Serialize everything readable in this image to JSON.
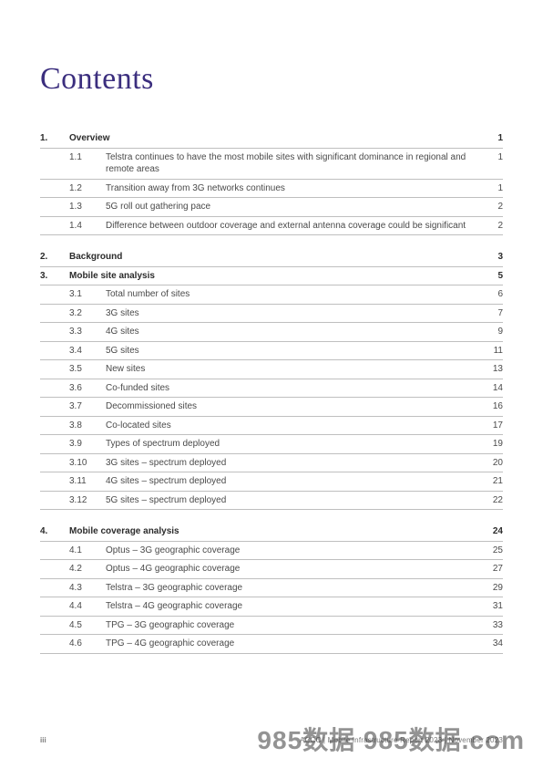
{
  "colors": {
    "title": "#3b2e7e",
    "text": "#4a4a4a",
    "section_text": "#2b2b2b",
    "rule": "#bfbfbf",
    "footer": "#7a7a7a",
    "watermark": "#3b3b3b"
  },
  "title": "Contents",
  "sections": [
    {
      "num": "1.",
      "label": "Overview",
      "page": "1",
      "gap_before": false,
      "items": [
        {
          "num": "1.1",
          "label": "Telstra continues to have the most mobile sites with significant dominance in regional and remote areas",
          "page": "1"
        },
        {
          "num": "1.2",
          "label": "Transition away from 3G networks continues",
          "page": "1"
        },
        {
          "num": "1.3",
          "label": "5G roll out gathering pace",
          "page": "2"
        },
        {
          "num": "1.4",
          "label": "Difference between outdoor coverage and external antenna coverage could be significant",
          "page": "2"
        }
      ]
    },
    {
      "num": "2.",
      "label": "Background",
      "page": "3",
      "gap_before": true,
      "items": []
    },
    {
      "num": "3.",
      "label": "Mobile site analysis",
      "page": "5",
      "gap_before": false,
      "items": [
        {
          "num": "3.1",
          "label": "Total number of sites",
          "page": "6"
        },
        {
          "num": "3.2",
          "label": "3G sites",
          "page": "7"
        },
        {
          "num": "3.3",
          "label": "4G sites",
          "page": "9"
        },
        {
          "num": "3.4",
          "label": "5G sites",
          "page": "11"
        },
        {
          "num": "3.5",
          "label": "New sites",
          "page": "13"
        },
        {
          "num": "3.6",
          "label": "Co-funded sites",
          "page": "14"
        },
        {
          "num": "3.7",
          "label": "Decommissioned sites",
          "page": "16"
        },
        {
          "num": "3.8",
          "label": "Co-located sites",
          "page": "17"
        },
        {
          "num": "3.9",
          "label": "Types of spectrum deployed",
          "page": "19"
        },
        {
          "num": "3.10",
          "label": "3G sites – spectrum deployed",
          "page": "20"
        },
        {
          "num": "3.11",
          "label": "4G sites – spectrum deployed",
          "page": "21"
        },
        {
          "num": "3.12",
          "label": "5G sites – spectrum deployed",
          "page": "22"
        }
      ]
    },
    {
      "num": "4.",
      "label": "Mobile coverage analysis",
      "page": "24",
      "gap_before": true,
      "items": [
        {
          "num": "4.1",
          "label": "Optus – 3G geographic coverage",
          "page": "25"
        },
        {
          "num": "4.2",
          "label": "Optus – 4G geographic coverage",
          "page": "27"
        },
        {
          "num": "4.3",
          "label": "Telstra – 3G geographic coverage",
          "page": "29"
        },
        {
          "num": "4.4",
          "label": "Telstra – 4G geographic coverage",
          "page": "31"
        },
        {
          "num": "4.5",
          "label": "TPG – 3G geographic coverage",
          "page": "33"
        },
        {
          "num": "4.6",
          "label": "TPG – 4G geographic coverage",
          "page": "34"
        }
      ]
    }
  ],
  "footer": {
    "page_num": "iii",
    "right": "ACCC   |   Mobile Infrastructure Report 2023   |   November 2023"
  },
  "watermark": "985数据 985数据.com"
}
